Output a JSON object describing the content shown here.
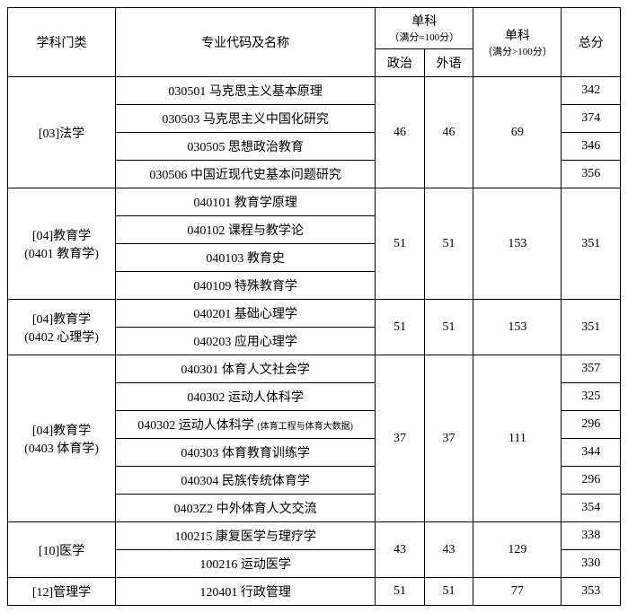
{
  "headers": {
    "category": "学科门类",
    "major": "专业代码及名称",
    "single": "单科",
    "single_note1": "（满分=100分）",
    "single_note2": "（满分>100分）",
    "politics": "政治",
    "foreign": "外语",
    "total": "总分"
  },
  "groups": [
    {
      "category": "[03]法学",
      "politics": "46",
      "foreign": "46",
      "single2": "69",
      "rows": [
        {
          "major": "030501 马克思主义基本原理",
          "total": "342"
        },
        {
          "major": "030503 马克思主义中国化研究",
          "total": "374"
        },
        {
          "major": "030505 思想政治教育",
          "total": "346"
        },
        {
          "major": "030506 中国近现代史基本问题研究",
          "total": "356"
        }
      ]
    },
    {
      "category": "[04]教育学\n(0401 教育学)",
      "politics": "51",
      "foreign": "51",
      "single2": "153",
      "rows": [
        {
          "major": "040101 教育学原理",
          "total": ""
        },
        {
          "major": "040102 课程与教学论",
          "total_merge_start": true,
          "total": "351"
        },
        {
          "major": "040103 教育史",
          "total": ""
        },
        {
          "major": "040109 特殊教育学",
          "total": ""
        }
      ],
      "total_merged": "351"
    },
    {
      "category": "[04]教育学\n(0402 心理学)",
      "politics": "51",
      "foreign": "51",
      "single2": "153",
      "rows": [
        {
          "major": "040201 基础心理学",
          "total": ""
        },
        {
          "major": "040203 应用心理学",
          "total": ""
        }
      ],
      "total_merged": "351"
    },
    {
      "category": "[04]教育学\n(0403 体育学)",
      "politics": "37",
      "foreign": "37",
      "single2": "111",
      "rows": [
        {
          "major": "040301 体育人文社会学",
          "total": "357"
        },
        {
          "major": "040302 运动人体科学",
          "total": "325"
        },
        {
          "major_html": "040302 运动人体科学 <span class=\"tiny\">(体育工程与体育大数据)</span>",
          "total": "296"
        },
        {
          "major": "040303 体育教育训练学",
          "total": "344"
        },
        {
          "major": "040304 民族传统体育学",
          "total": "296"
        },
        {
          "major": "0403Z2 中外体育人文交流",
          "total": "354"
        }
      ]
    },
    {
      "category": "[10]医学",
      "politics": "43",
      "foreign": "43",
      "single2": "129",
      "rows": [
        {
          "major": "100215 康复医学与理疗学",
          "total": "338"
        },
        {
          "major": "100216 运动医学",
          "total": "330"
        }
      ]
    },
    {
      "category": "[12]管理学",
      "politics": "51",
      "foreign": "51",
      "single2": "77",
      "rows": [
        {
          "major": "120401 行政管理",
          "total": "353"
        }
      ]
    }
  ],
  "style": {
    "font_family": "SimSun",
    "font_size_main": 14,
    "font_size_note": 11,
    "border_color": "#000000",
    "background_color": "#ffffff",
    "text_color": "#000000"
  }
}
